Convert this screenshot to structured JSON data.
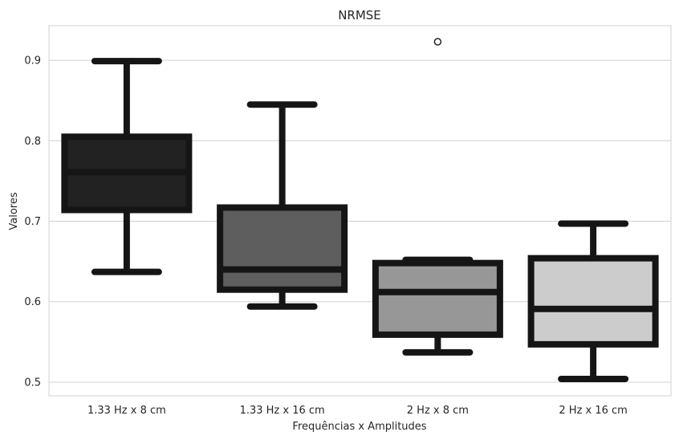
{
  "chart_data": {
    "type": "box",
    "title": "NRMSE",
    "xlabel": "Frequências x Amplitudes",
    "ylabel": "Valores",
    "ylim": [
      0.483,
      0.943
    ],
    "yticks": [
      "0.5",
      "0.6",
      "0.7",
      "0.8",
      "0.9"
    ],
    "grid": "horizontal",
    "categories": [
      "1.33 Hz x 8 cm",
      "1.33 Hz x 16 cm",
      "2 Hz x 8 cm",
      "2 Hz x 16 cm"
    ],
    "boxes": [
      {
        "whisker_low": 0.637,
        "q1": 0.714,
        "median": 0.761,
        "q3": 0.805,
        "whisker_high": 0.899,
        "outliers": [],
        "color": "#222222"
      },
      {
        "whisker_low": 0.594,
        "q1": 0.615,
        "median": 0.64,
        "q3": 0.717,
        "whisker_high": 0.845,
        "outliers": [],
        "color": "#5e5e5e"
      },
      {
        "whisker_low": 0.537,
        "q1": 0.559,
        "median": 0.612,
        "q3": 0.648,
        "whisker_high": 0.652,
        "outliers": [
          0.923
        ],
        "color": "#979797"
      },
      {
        "whisker_low": 0.504,
        "q1": 0.547,
        "median": 0.591,
        "q3": 0.654,
        "whisker_high": 0.697,
        "outliers": [],
        "color": "#cccccc"
      }
    ],
    "line_color": "#151515",
    "grid_color": "#d0d0d0"
  }
}
